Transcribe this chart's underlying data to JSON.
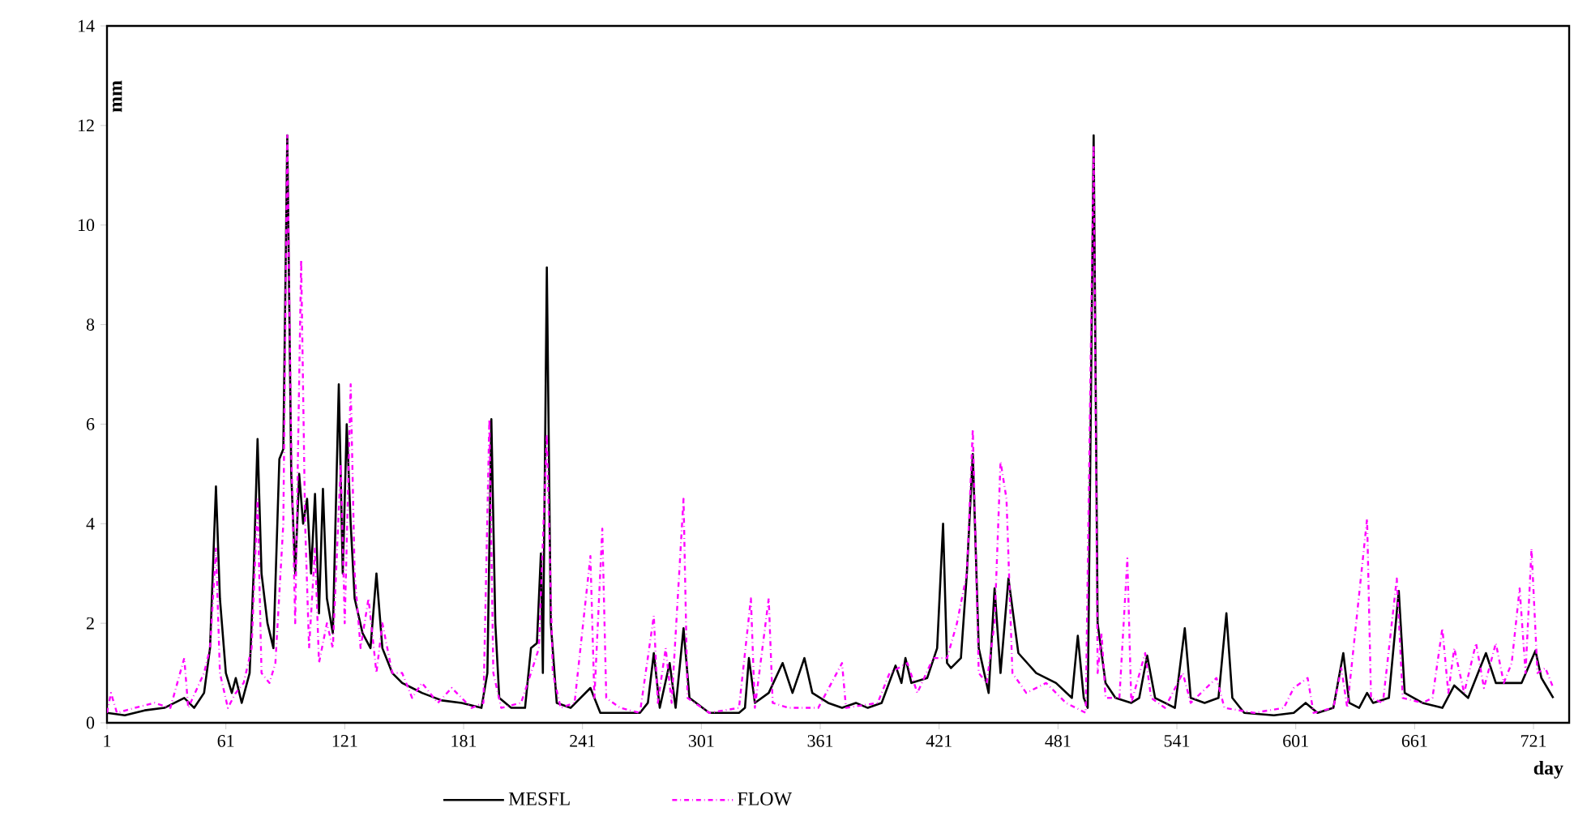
{
  "chart_data": {
    "type": "line",
    "xlabel": "day",
    "ylabel": "mm",
    "xlim": [
      1,
      739
    ],
    "xticks": [
      1,
      61,
      121,
      181,
      241,
      301,
      361,
      421,
      481,
      541,
      601,
      661,
      721
    ],
    "ylim": [
      0,
      14
    ],
    "yticks": [
      0,
      2,
      4,
      6,
      8,
      10,
      12,
      14
    ],
    "grid": false,
    "legend": "bottom",
    "marker": "none",
    "series": [
      {
        "name": "MESFL",
        "color": "#000000",
        "line_style": "solid",
        "x": [
          1,
          10,
          20,
          30,
          40,
          45,
          50,
          53,
          56,
          58,
          61,
          64,
          66,
          69,
          73,
          75,
          77,
          79,
          82,
          85,
          88,
          90,
          92,
          94,
          96,
          98,
          100,
          102,
          104,
          106,
          108,
          110,
          112,
          115,
          118,
          120,
          122,
          124,
          126,
          130,
          134,
          137,
          140,
          145,
          150,
          160,
          170,
          180,
          190,
          193,
          195,
          197,
          199,
          205,
          212,
          215,
          218,
          220,
          221,
          223,
          225,
          228,
          235,
          245,
          250,
          260,
          270,
          274,
          277,
          280,
          285,
          288,
          292,
          295,
          305,
          320,
          323,
          325,
          328,
          335,
          342,
          347,
          353,
          357,
          365,
          372,
          379,
          385,
          392,
          399,
          402,
          404,
          407,
          415,
          420,
          423,
          425,
          427,
          432,
          435,
          438,
          441,
          446,
          449,
          452,
          456,
          461,
          470,
          480,
          488,
          491,
          494,
          496,
          499,
          501,
          505,
          510,
          518,
          522,
          526,
          530,
          535,
          540,
          545,
          548,
          555,
          562,
          566,
          569,
          575,
          590,
          600,
          606,
          612,
          620,
          625,
          628,
          633,
          637,
          640,
          648,
          653,
          656,
          665,
          675,
          681,
          688,
          697,
          702,
          708,
          715,
          722,
          725,
          728,
          731
        ],
        "values": [
          0.2,
          0.15,
          0.25,
          0.3,
          0.5,
          0.3,
          0.6,
          1.5,
          4.75,
          2.5,
          1.0,
          0.6,
          0.9,
          0.4,
          1.0,
          3.0,
          5.7,
          3.0,
          2.0,
          1.5,
          5.3,
          5.5,
          11.8,
          5.0,
          3.0,
          5.0,
          4.0,
          4.5,
          3.0,
          4.6,
          2.2,
          4.7,
          2.5,
          1.8,
          6.8,
          3.0,
          6.0,
          4.0,
          2.5,
          1.8,
          1.5,
          3.0,
          1.5,
          1.0,
          0.8,
          0.6,
          0.45,
          0.4,
          0.3,
          1.0,
          6.1,
          2.0,
          0.5,
          0.3,
          0.3,
          1.5,
          1.6,
          3.4,
          1.0,
          9.15,
          2.0,
          0.4,
          0.3,
          0.7,
          0.2,
          0.2,
          0.2,
          0.4,
          1.4,
          0.3,
          1.2,
          0.3,
          1.9,
          0.5,
          0.2,
          0.2,
          0.3,
          1.3,
          0.4,
          0.6,
          1.2,
          0.6,
          1.3,
          0.6,
          0.4,
          0.3,
          0.4,
          0.3,
          0.4,
          1.15,
          0.8,
          1.3,
          0.8,
          0.9,
          1.5,
          4.0,
          1.2,
          1.1,
          1.3,
          3.0,
          5.4,
          1.5,
          0.6,
          2.7,
          1.0,
          2.9,
          1.4,
          1.0,
          0.8,
          0.5,
          1.75,
          0.5,
          0.3,
          11.8,
          2.0,
          0.8,
          0.5,
          0.4,
          0.5,
          1.35,
          0.5,
          0.4,
          0.3,
          1.9,
          0.5,
          0.4,
          0.5,
          2.2,
          0.5,
          0.2,
          0.15,
          0.2,
          0.4,
          0.2,
          0.3,
          1.4,
          0.4,
          0.3,
          0.6,
          0.4,
          0.5,
          2.65,
          0.6,
          0.4,
          0.3,
          0.75,
          0.5,
          1.4,
          0.8,
          0.8,
          0.8,
          1.45,
          0.9,
          0.7,
          0.5
        ]
      },
      {
        "name": "FLOW",
        "color": "#ff00ff",
        "line_style": "dashdot",
        "x": [
          1,
          3,
          6,
          15,
          25,
          33,
          40,
          42,
          50,
          53,
          56,
          58,
          62,
          66,
          70,
          74,
          77,
          79,
          83,
          86,
          90,
          92,
          94,
          96,
          99,
          101,
          103,
          106,
          108,
          112,
          115,
          119,
          121,
          124,
          126,
          129,
          133,
          137,
          140,
          145,
          150,
          155,
          160,
          168,
          175,
          185,
          191,
          194,
          196,
          200,
          210,
          215,
          219,
          223,
          226,
          230,
          237,
          245,
          247,
          251,
          253,
          260,
          270,
          277,
          279,
          283,
          286,
          292,
          294,
          305,
          320,
          326,
          328,
          335,
          337,
          345,
          360,
          372,
          374,
          390,
          396,
          405,
          410,
          418,
          425,
          430,
          435,
          438,
          441,
          445,
          449,
          452,
          455,
          458,
          465,
          475,
          485,
          495,
          499,
          501,
          503,
          505,
          512,
          516,
          518,
          525,
          528,
          535,
          544,
          548,
          561,
          565,
          580,
          595,
          600,
          607,
          610,
          620,
          624,
          627,
          637,
          639,
          645,
          652,
          655,
          665,
          670,
          675,
          678,
          681,
          686,
          692,
          696,
          702,
          706,
          710,
          714,
          717,
          720,
          723,
          727,
          731
        ],
        "values": [
          0.2,
          0.6,
          0.2,
          0.3,
          0.4,
          0.3,
          1.3,
          0.3,
          1.0,
          1.5,
          3.5,
          1.0,
          0.3,
          0.6,
          0.8,
          1.5,
          4.5,
          1.0,
          0.8,
          1.2,
          4.0,
          11.8,
          5.5,
          2.0,
          9.3,
          4.0,
          1.5,
          3.5,
          1.2,
          2.0,
          1.5,
          5.2,
          2.0,
          6.8,
          3.0,
          1.5,
          2.5,
          1.0,
          2.0,
          1.0,
          1.0,
          0.5,
          0.8,
          0.4,
          0.7,
          0.3,
          0.4,
          6.1,
          1.0,
          0.3,
          0.4,
          1.0,
          1.5,
          5.8,
          1.0,
          0.3,
          0.4,
          3.35,
          0.5,
          3.9,
          0.5,
          0.3,
          0.2,
          2.15,
          0.4,
          1.5,
          0.4,
          4.5,
          0.5,
          0.2,
          0.3,
          2.5,
          0.3,
          2.5,
          0.4,
          0.3,
          0.3,
          1.2,
          0.3,
          0.4,
          1.0,
          1.2,
          0.6,
          1.3,
          1.3,
          2.0,
          3.0,
          5.9,
          1.0,
          0.8,
          2.0,
          5.25,
          4.5,
          1.0,
          0.6,
          0.8,
          0.4,
          0.2,
          11.6,
          1.0,
          1.8,
          0.5,
          0.5,
          3.3,
          0.4,
          1.4,
          0.5,
          0.3,
          1.0,
          0.4,
          0.9,
          0.3,
          0.2,
          0.3,
          0.7,
          0.9,
          0.2,
          0.3,
          1.1,
          0.3,
          4.1,
          0.5,
          0.4,
          2.9,
          0.5,
          0.4,
          0.5,
          1.9,
          0.6,
          1.5,
          0.6,
          1.6,
          0.7,
          1.6,
          0.8,
          1.2,
          2.7,
          1.0,
          3.5,
          1.0,
          1.1,
          0.7
        ]
      }
    ]
  }
}
